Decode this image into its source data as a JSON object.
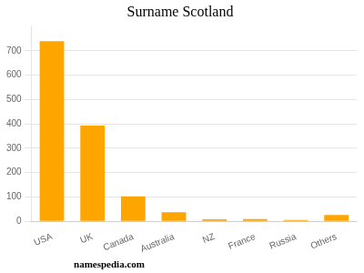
{
  "chart_data": {
    "type": "bar",
    "title": "Surname Scotland",
    "categories": [
      "USA",
      "UK",
      "Canada",
      "Australia",
      "NZ",
      "France",
      "Russia",
      "Others"
    ],
    "values": [
      740,
      393,
      103,
      37,
      8,
      9,
      5,
      26
    ],
    "color": "#FFA500",
    "ylim": [
      0,
      800
    ],
    "yticks": [
      0,
      100,
      200,
      300,
      400,
      500,
      600,
      700
    ],
    "grid": true,
    "annotations": [
      "namespedia.com"
    ]
  }
}
